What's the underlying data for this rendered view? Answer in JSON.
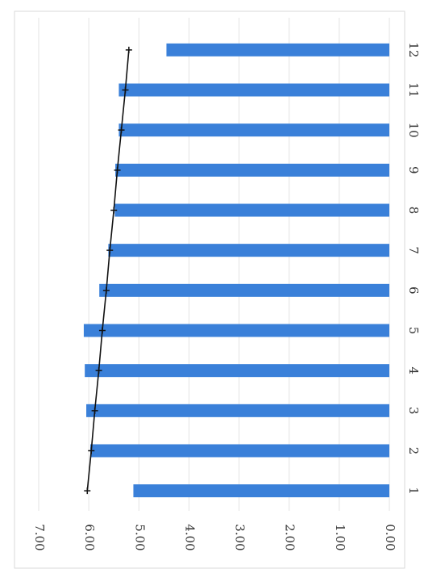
{
  "chart_data": {
    "type": "bar",
    "orientation": "rotated",
    "categories": [
      "1",
      "2",
      "3",
      "4",
      "5",
      "6",
      "7",
      "8",
      "9",
      "10",
      "11",
      "12"
    ],
    "values": [
      5.11,
      5.97,
      6.05,
      6.08,
      6.1,
      5.79,
      5.61,
      5.48,
      5.47,
      5.4,
      5.4,
      4.45
    ],
    "color": "#3a80d9",
    "trend_values": [
      6.03,
      5.95,
      5.88,
      5.8,
      5.73,
      5.65,
      5.58,
      5.5,
      5.43,
      5.35,
      5.27,
      5.2
    ],
    "trend_color": "#111111",
    "ylim": [
      0,
      7
    ],
    "yticks": [
      {
        "value": 0,
        "label": "0.00"
      },
      {
        "value": 1,
        "label": "1.00"
      },
      {
        "value": 2,
        "label": "2.00"
      },
      {
        "value": 3,
        "label": "3.00"
      },
      {
        "value": 4,
        "label": "4.00"
      },
      {
        "value": 5,
        "label": "5.00"
      },
      {
        "value": 6,
        "label": "6.00"
      },
      {
        "value": 7,
        "label": "7.00"
      }
    ],
    "grid": true
  }
}
